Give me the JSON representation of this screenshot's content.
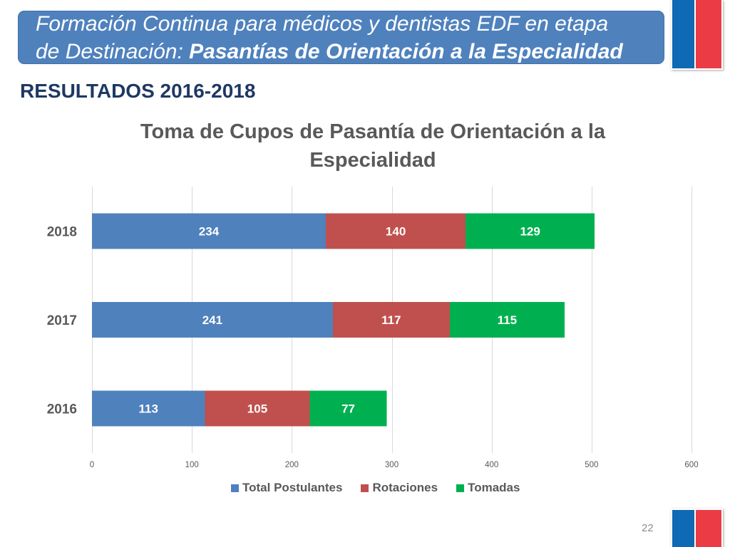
{
  "header": {
    "line1": "Formación Continua para médicos y dentistas EDF en etapa",
    "line2_prefix": "de Destinación: ",
    "line2_emphasis": "Pasantías de Orientación a la Especialidad"
  },
  "section_title": "RESULTADOS 2016-2018",
  "page_number": "22",
  "colors": {
    "banner": "#4F81BD",
    "banner_text": "#FFFFFF",
    "section_title": "#1F3864",
    "chart_text": "#595959",
    "gridline": "#D9D9D9",
    "flag_blue": "#0F69B4",
    "flag_red": "#EB3C46",
    "page_number": "#8C8C8C"
  },
  "chart_data": {
    "type": "bar",
    "orientation": "horizontal",
    "stacked": true,
    "title_lines": [
      "Toma de Cupos de Pasantía de Orientación a la",
      "Especialidad"
    ],
    "categories": [
      "2016",
      "2017",
      "2018"
    ],
    "series": [
      {
        "name": "Total Postulantes",
        "color": "#4F81BD",
        "values": [
          113,
          241,
          234
        ]
      },
      {
        "name": "Rotaciones",
        "color": "#C0504D",
        "values": [
          105,
          117,
          140
        ]
      },
      {
        "name": "Tomadas",
        "color": "#00B050",
        "values": [
          77,
          115,
          129
        ]
      }
    ],
    "xlim": [
      0,
      600
    ],
    "xticks": [
      0,
      100,
      200,
      300,
      400,
      500,
      600
    ],
    "grid": true,
    "data_labels": true,
    "legend": "bottom"
  }
}
